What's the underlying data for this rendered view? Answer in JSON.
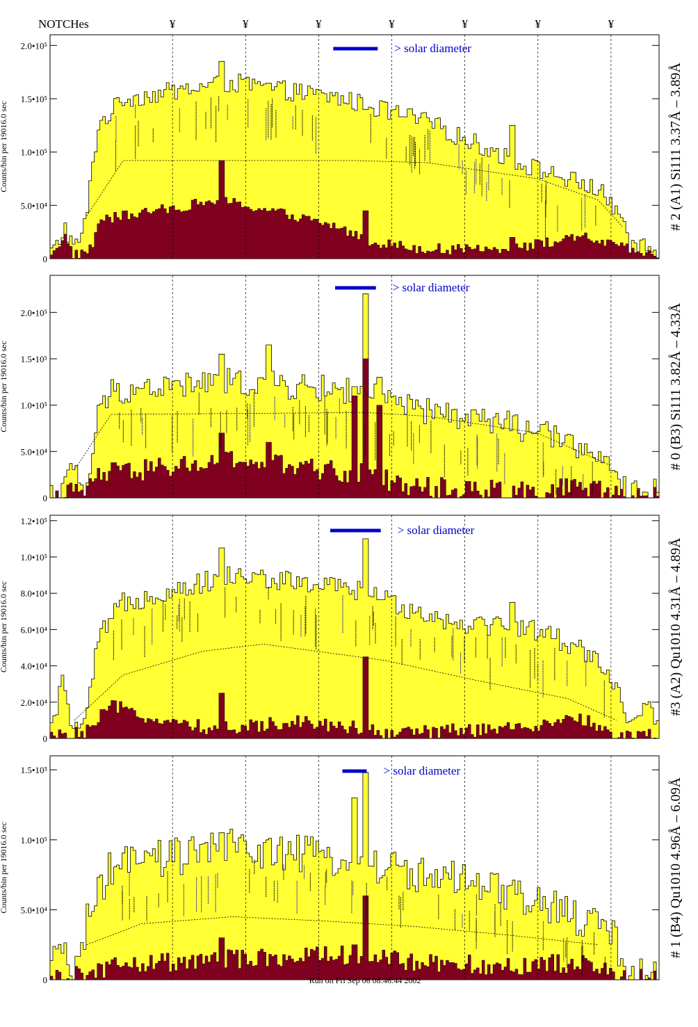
{
  "header": {
    "title": "NOTCHes",
    "notch_symbol": "¥"
  },
  "footer": {
    "run_text": "Run on Fri Sep 06 08:46:44 2002"
  },
  "colors": {
    "total_fill": "#ffff33",
    "low_fill": "#800020",
    "solar_bar": "#0000cc",
    "line_text_blue": "#1a1aa6",
    "line_text_black": "#000000"
  },
  "chart_data": [
    {
      "type": "bar",
      "detector_label": "# 2 (A1) Si111  3.37Å – 3.89Å",
      "ylabel": "Counts/bin per  19016.0 sec",
      "ylim": [
        0,
        210000
      ],
      "yticks": [
        {
          "label": "0",
          "value": 0
        },
        {
          "label": "5.0•10⁴",
          "value": 50000
        },
        {
          "label": "1.0•10⁵",
          "value": 100000
        },
        {
          "label": "1.5•10⁵",
          "value": 150000
        },
        {
          "label": "2.0•10⁵",
          "value": 200000
        }
      ],
      "solar_text": "> solar diameter",
      "notches": [
        0.16,
        0.28,
        0.4,
        0.52,
        0.64,
        0.76,
        0.88
      ],
      "total_profile": [
        [
          0,
          5000
        ],
        [
          0.01,
          10000
        ],
        [
          0.025,
          30000
        ],
        [
          0.04,
          8000
        ],
        [
          0.06,
          35000
        ],
        [
          0.07,
          90000
        ],
        [
          0.08,
          125000
        ],
        [
          0.12,
          150000
        ],
        [
          0.3,
          165000
        ],
        [
          0.48,
          150000
        ],
        [
          0.62,
          128000
        ],
        [
          0.77,
          90000
        ],
        [
          0.9,
          65000
        ],
        [
          0.94,
          40000
        ],
        [
          0.95,
          8000
        ],
        [
          0.97,
          15000
        ],
        [
          1,
          5000
        ]
      ],
      "low_profile": [
        [
          0,
          5000
        ],
        [
          0.025,
          20000
        ],
        [
          0.04,
          3000
        ],
        [
          0.07,
          10000
        ],
        [
          0.08,
          36000
        ],
        [
          0.28,
          55000
        ],
        [
          0.4,
          40000
        ],
        [
          0.47,
          30000
        ],
        [
          0.53,
          16000
        ],
        [
          0.6,
          10000
        ],
        [
          0.7,
          8000
        ],
        [
          0.78,
          12000
        ],
        [
          0.88,
          20000
        ],
        [
          0.94,
          10000
        ],
        [
          1,
          2000
        ]
      ],
      "spikes": [
        [
          0.28,
          185000,
          92000
        ],
        [
          0.52,
          140000,
          45000
        ],
        [
          0.76,
          125000,
          20000
        ]
      ],
      "noise": 9000,
      "low_noise": 5000,
      "dashed_model": [
        [
          0.06,
          40000
        ],
        [
          0.12,
          92000
        ],
        [
          0.5,
          92000
        ],
        [
          0.62,
          90000
        ],
        [
          0.8,
          75000
        ],
        [
          0.9,
          55000
        ],
        [
          0.94,
          30000
        ]
      ]
    },
    {
      "type": "bar",
      "detector_label": "# 0 (B3) Si111  3.82Å – 4.33Å",
      "ylabel": "Counts/bin per  19016.0 sec",
      "ylim": [
        0,
        240000
      ],
      "yticks": [
        {
          "label": "0",
          "value": 0
        },
        {
          "label": "5.0•10⁴",
          "value": 50000
        },
        {
          "label": "1.0•10⁵",
          "value": 100000
        },
        {
          "label": "1.5•10⁵",
          "value": 150000
        },
        {
          "label": "2.0•10⁵",
          "value": 200000
        }
      ],
      "solar_text": "> solar diameter",
      "notches": [
        0.16,
        0.28,
        0.4,
        0.52,
        0.64,
        0.76,
        0.88
      ],
      "total_profile": [
        [
          0,
          5000
        ],
        [
          0.02,
          12000
        ],
        [
          0.04,
          30000
        ],
        [
          0.06,
          5000
        ],
        [
          0.08,
          90000
        ],
        [
          0.1,
          115000
        ],
        [
          0.3,
          125000
        ],
        [
          0.5,
          115000
        ],
        [
          0.6,
          95000
        ],
        [
          0.75,
          80000
        ],
        [
          0.88,
          55000
        ],
        [
          0.93,
          20000
        ],
        [
          0.95,
          2000
        ],
        [
          0.97,
          15000
        ],
        [
          1,
          3000
        ]
      ],
      "low_profile": [
        [
          0,
          3000
        ],
        [
          0.03,
          8000
        ],
        [
          0.05,
          2000
        ],
        [
          0.08,
          25000
        ],
        [
          0.3,
          40000
        ],
        [
          0.45,
          30000
        ],
        [
          0.52,
          25000
        ],
        [
          0.6,
          12000
        ],
        [
          0.75,
          8000
        ],
        [
          0.88,
          10000
        ],
        [
          0.95,
          2000
        ],
        [
          1,
          1000
        ]
      ],
      "spikes": [
        [
          0.52,
          220000,
          150000
        ],
        [
          0.5,
          120000,
          110000
        ],
        [
          0.54,
          130000,
          100000
        ],
        [
          0.28,
          155000,
          70000
        ],
        [
          0.36,
          165000,
          60000
        ]
      ],
      "noise": 15000,
      "low_noise": 12000,
      "dashed_model": [
        [
          0.04,
          30000
        ],
        [
          0.1,
          90000
        ],
        [
          0.52,
          92000
        ],
        [
          0.62,
          88000
        ],
        [
          0.8,
          70000
        ],
        [
          0.92,
          35000
        ]
      ]
    },
    {
      "type": "bar",
      "detector_label": "#3 (A2) Qu1010  4.31Å – 4.89Å",
      "ylabel": "Counts/bin per  19016.0 sec",
      "ylim": [
        0,
        123000
      ],
      "yticks": [
        {
          "label": "0",
          "value": 0
        },
        {
          "label": "2.0•10⁴",
          "value": 20000
        },
        {
          "label": "4.0•10⁴",
          "value": 40000
        },
        {
          "label": "6.0•10⁴",
          "value": 60000
        },
        {
          "label": "8.0•10⁴",
          "value": 80000
        },
        {
          "label": "1.0•10⁵",
          "value": 100000
        },
        {
          "label": "1.2•10⁵",
          "value": 120000
        }
      ],
      "solar_text": "> solar diameter",
      "notches": [
        0.16,
        0.28,
        0.4,
        0.52,
        0.64,
        0.76,
        0.88
      ],
      "total_profile": [
        [
          0,
          2000
        ],
        [
          0.02,
          30000
        ],
        [
          0.04,
          5000
        ],
        [
          0.06,
          10000
        ],
        [
          0.08,
          55000
        ],
        [
          0.12,
          75000
        ],
        [
          0.3,
          90000
        ],
        [
          0.5,
          82000
        ],
        [
          0.65,
          65000
        ],
        [
          0.8,
          60000
        ],
        [
          0.9,
          45000
        ],
        [
          0.94,
          20000
        ],
        [
          0.96,
          5000
        ],
        [
          0.98,
          20000
        ],
        [
          1,
          3000
        ]
      ],
      "low_profile": [
        [
          0,
          1000
        ],
        [
          0.06,
          3000
        ],
        [
          0.1,
          18000
        ],
        [
          0.2,
          8000
        ],
        [
          0.3,
          5000
        ],
        [
          0.4,
          10000
        ],
        [
          0.5,
          6000
        ],
        [
          0.55,
          3000
        ],
        [
          0.65,
          4000
        ],
        [
          0.75,
          5000
        ],
        [
          0.88,
          10000
        ],
        [
          0.93,
          2000
        ],
        [
          1,
          1000
        ]
      ],
      "spikes": [
        [
          0.28,
          105000,
          25000
        ],
        [
          0.52,
          110000,
          45000
        ],
        [
          0.76,
          75000,
          5000
        ]
      ],
      "noise": 6000,
      "low_noise": 4000,
      "dashed_model": [
        [
          0.04,
          10000
        ],
        [
          0.12,
          35000
        ],
        [
          0.25,
          48000
        ],
        [
          0.35,
          52000
        ],
        [
          0.55,
          43000
        ],
        [
          0.7,
          32000
        ],
        [
          0.85,
          22000
        ],
        [
          0.93,
          10000
        ]
      ]
    },
    {
      "type": "bar",
      "detector_label": "# 1 (B4) Qu1010 4.96Å – 6.09Å",
      "ylabel": "Counts/bin per  19016.0 sec",
      "ylim": [
        0,
        160000
      ],
      "yticks": [
        {
          "label": "0",
          "value": 0
        },
        {
          "label": "5.0•10⁴",
          "value": 50000
        },
        {
          "label": "1.0•10⁵",
          "value": 100000
        },
        {
          "label": "1.5•10⁵",
          "value": 150000
        }
      ],
      "solar_text": "> solar diameter",
      "notches": [
        0.16,
        0.28,
        0.4,
        0.52,
        0.64,
        0.76,
        0.88
      ],
      "total_profile": [
        [
          0,
          2000
        ],
        [
          0.02,
          25000
        ],
        [
          0.04,
          5000
        ],
        [
          0.06,
          40000
        ],
        [
          0.1,
          80000
        ],
        [
          0.3,
          95000
        ],
        [
          0.5,
          85000
        ],
        [
          0.65,
          72000
        ],
        [
          0.8,
          55000
        ],
        [
          0.92,
          35000
        ],
        [
          0.95,
          5000
        ],
        [
          1,
          2000
        ]
      ],
      "low_profile": [
        [
          0,
          1000
        ],
        [
          0.05,
          3000
        ],
        [
          0.1,
          10000
        ],
        [
          0.3,
          15000
        ],
        [
          0.5,
          18000
        ],
        [
          0.6,
          12000
        ],
        [
          0.75,
          10000
        ],
        [
          0.88,
          12000
        ],
        [
          0.93,
          2000
        ],
        [
          1,
          1000
        ]
      ],
      "spikes": [
        [
          0.52,
          148000,
          60000
        ],
        [
          0.28,
          105000,
          30000
        ],
        [
          0.5,
          130000,
          25000
        ]
      ],
      "noise": 14000,
      "low_noise": 7000,
      "dashed_model": [
        [
          0.06,
          25000
        ],
        [
          0.15,
          40000
        ],
        [
          0.3,
          45000
        ],
        [
          0.45,
          42000
        ],
        [
          0.6,
          38000
        ],
        [
          0.75,
          32000
        ],
        [
          0.9,
          25000
        ]
      ]
    }
  ]
}
